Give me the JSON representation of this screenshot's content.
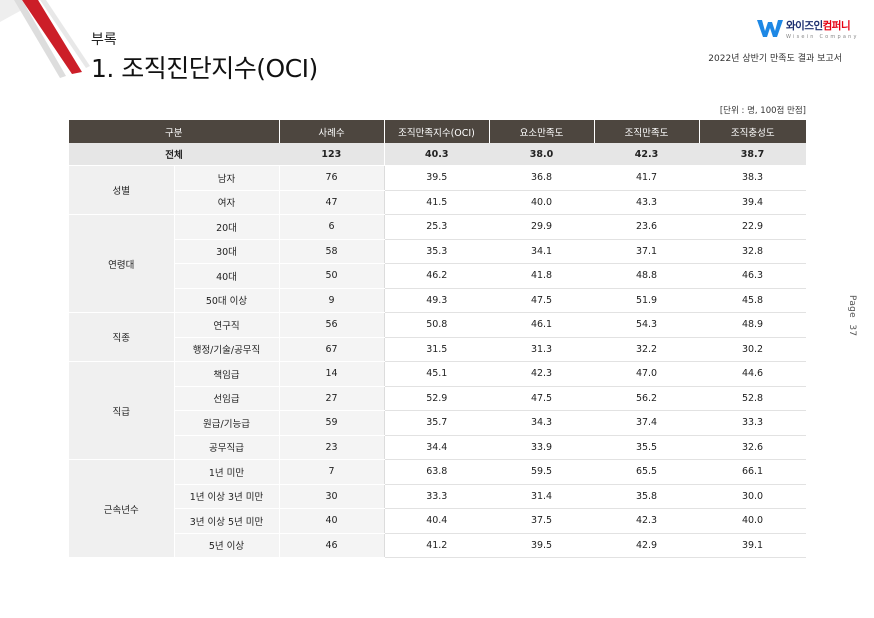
{
  "header": {
    "appendix": "부록",
    "title": "1. 조직진단지수(OCI)",
    "logo_ko_main": "와이즈인",
    "logo_ko_accent": "컴퍼니",
    "logo_en": "Wisein Company",
    "report": "2022년 상반기 만족도 결과 보고서"
  },
  "page": {
    "label": "Page",
    "number": "37"
  },
  "unit": "[단위 : 명, 100점 만점]",
  "colors": {
    "header_bg": "#4d463f",
    "accent_red": "#e60012",
    "logo_blue": "#1d2f6f"
  },
  "table": {
    "headers": [
      "구분",
      "사례수",
      "조직만족지수(OCI)",
      "요소만족도",
      "조직만족도",
      "조직충성도"
    ],
    "total": {
      "label": "전체",
      "count": "123",
      "values": [
        "40.3",
        "38.0",
        "42.3",
        "38.7"
      ]
    },
    "groups": [
      {
        "name": "성별",
        "rows": [
          {
            "label": "남자",
            "count": "76",
            "values": [
              "39.5",
              "36.8",
              "41.7",
              "38.3"
            ]
          },
          {
            "label": "여자",
            "count": "47",
            "values": [
              "41.5",
              "40.0",
              "43.3",
              "39.4"
            ]
          }
        ]
      },
      {
        "name": "연령대",
        "rows": [
          {
            "label": "20대",
            "count": "6",
            "values": [
              "25.3",
              "29.9",
              "23.6",
              "22.9"
            ]
          },
          {
            "label": "30대",
            "count": "58",
            "values": [
              "35.3",
              "34.1",
              "37.1",
              "32.8"
            ]
          },
          {
            "label": "40대",
            "count": "50",
            "values": [
              "46.2",
              "41.8",
              "48.8",
              "46.3"
            ]
          },
          {
            "label": "50대 이상",
            "count": "9",
            "values": [
              "49.3",
              "47.5",
              "51.9",
              "45.8"
            ]
          }
        ]
      },
      {
        "name": "직종",
        "rows": [
          {
            "label": "연구직",
            "count": "56",
            "values": [
              "50.8",
              "46.1",
              "54.3",
              "48.9"
            ]
          },
          {
            "label": "행정/기술/공무직",
            "count": "67",
            "values": [
              "31.5",
              "31.3",
              "32.2",
              "30.2"
            ]
          }
        ]
      },
      {
        "name": "직급",
        "rows": [
          {
            "label": "책임급",
            "count": "14",
            "values": [
              "45.1",
              "42.3",
              "47.0",
              "44.6"
            ]
          },
          {
            "label": "선임급",
            "count": "27",
            "values": [
              "52.9",
              "47.5",
              "56.2",
              "52.8"
            ]
          },
          {
            "label": "원급/기능급",
            "count": "59",
            "values": [
              "35.7",
              "34.3",
              "37.4",
              "33.3"
            ]
          },
          {
            "label": "공무직급",
            "count": "23",
            "values": [
              "34.4",
              "33.9",
              "35.5",
              "32.6"
            ]
          }
        ]
      },
      {
        "name": "근속년수",
        "rows": [
          {
            "label": "1년 미만",
            "count": "7",
            "values": [
              "63.8",
              "59.5",
              "65.5",
              "66.1"
            ]
          },
          {
            "label": "1년 이상 3년 미만",
            "count": "30",
            "values": [
              "33.3",
              "31.4",
              "35.8",
              "30.0"
            ]
          },
          {
            "label": "3년 이상 5년 미만",
            "count": "40",
            "values": [
              "40.4",
              "37.5",
              "42.3",
              "40.0"
            ]
          },
          {
            "label": "5년 이상",
            "count": "46",
            "values": [
              "41.2",
              "39.5",
              "42.9",
              "39.1"
            ]
          }
        ]
      }
    ]
  }
}
